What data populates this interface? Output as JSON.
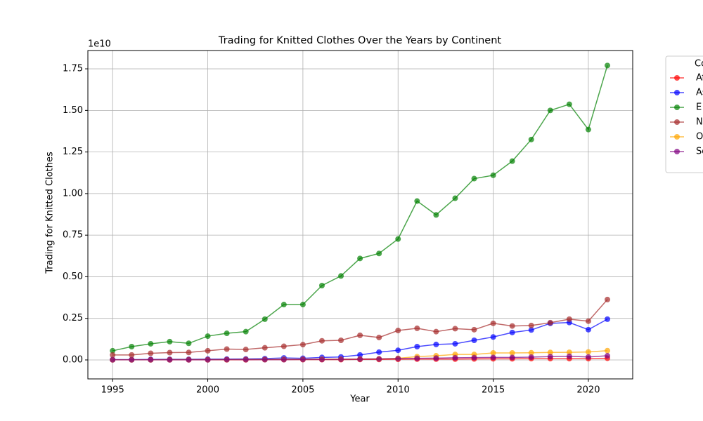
{
  "chart_data": {
    "type": "line",
    "title": "Trading for Knitted Clothes Over the Years by Continent",
    "x_label": "Year",
    "y_label": "Trading for Knitted Clothes",
    "y_offset_label": "1e10",
    "legend_title": "Co",
    "legend_position": "outside-right",
    "grid": true,
    "x": [
      1995,
      1996,
      1997,
      1998,
      1999,
      2000,
      2001,
      2002,
      2003,
      2004,
      2005,
      2006,
      2007,
      2008,
      2009,
      2010,
      2011,
      2012,
      2013,
      2014,
      2015,
      2016,
      2017,
      2018,
      2019,
      2020,
      2021
    ],
    "xlim": [
      1993.7,
      2022.33
    ],
    "xticks": [
      1995,
      2000,
      2005,
      2010,
      2015,
      2020
    ],
    "ylim": [
      -0.114,
      1.86
    ],
    "yticks": [
      {
        "value": 0,
        "label": "0.00"
      },
      0.25,
      {
        "value": 0.5,
        "label": "0.50"
      },
      0.75,
      {
        "value": 1,
        "label": "1.00"
      },
      1.25,
      {
        "value": 1.5,
        "label": "1.50"
      },
      1.75
    ],
    "series": [
      {
        "name": "Af",
        "color": "#ff0000",
        "values": [
          0.001,
          0.001,
          0.001,
          0.001,
          0.001,
          0.001,
          0.001,
          0.001,
          0.002,
          0.002,
          0.002,
          0.002,
          0.002,
          0.003,
          0.003,
          0.004,
          0.005,
          0.005,
          0.005,
          0.006,
          0.007,
          0.007,
          0.008,
          0.008,
          0.008,
          0.008,
          0.01
        ]
      },
      {
        "name": "As",
        "color": "#0000ff",
        "values": [
          0.002,
          0.002,
          0.003,
          0.004,
          0.004,
          0.005,
          0.005,
          0.006,
          0.008,
          0.012,
          0.01,
          0.015,
          0.018,
          0.03,
          0.047,
          0.058,
          0.08,
          0.093,
          0.097,
          0.118,
          0.138,
          0.165,
          0.18,
          0.22,
          0.225,
          0.182,
          0.245
        ]
      },
      {
        "name": "E",
        "color": "#008000",
        "values": [
          0.055,
          0.08,
          0.097,
          0.11,
          0.1,
          0.143,
          0.16,
          0.17,
          0.245,
          0.333,
          0.333,
          0.447,
          0.505,
          0.61,
          0.64,
          0.727,
          0.955,
          0.872,
          0.972,
          1.09,
          1.11,
          1.195,
          1.325,
          1.5,
          1.537,
          1.385,
          1.77
        ]
      },
      {
        "name": "N",
        "color": "#a52a2a",
        "values": [
          0.03,
          0.03,
          0.04,
          0.044,
          0.045,
          0.055,
          0.065,
          0.063,
          0.073,
          0.082,
          0.092,
          0.115,
          0.118,
          0.148,
          0.135,
          0.177,
          0.19,
          0.17,
          0.188,
          0.182,
          0.22,
          0.204,
          0.207,
          0.224,
          0.245,
          0.233,
          0.363
        ]
      },
      {
        "name": "O",
        "color": "#ffa500",
        "values": [
          0.001,
          0.001,
          0.001,
          0.002,
          0.002,
          0.002,
          0.002,
          0.003,
          0.003,
          0.004,
          0.004,
          0.005,
          0.005,
          0.006,
          0.007,
          0.01,
          0.02,
          0.025,
          0.033,
          0.033,
          0.042,
          0.042,
          0.043,
          0.045,
          0.046,
          0.048,
          0.056
        ]
      },
      {
        "name": "So",
        "color": "#800080",
        "values": [
          0.001,
          0.001,
          0.001,
          0.001,
          0.001,
          0.001,
          0.002,
          0.002,
          0.002,
          0.002,
          0.003,
          0.003,
          0.004,
          0.005,
          0.006,
          0.008,
          0.01,
          0.011,
          0.013,
          0.014,
          0.015,
          0.015,
          0.017,
          0.02,
          0.022,
          0.018,
          0.025
        ]
      }
    ]
  }
}
